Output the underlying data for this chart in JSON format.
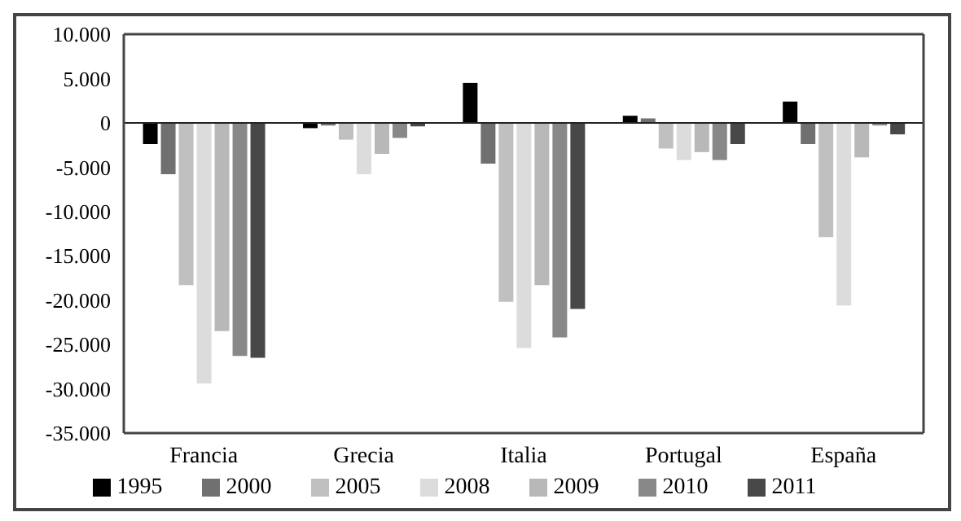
{
  "chart_data": {
    "type": "bar",
    "categories": [
      "Francia",
      "Grecia",
      "Italia",
      "Portugal",
      "España"
    ],
    "series": [
      {
        "name": "1995",
        "color": "#000000",
        "values": [
          -2400,
          -600,
          4500,
          800,
          2400
        ]
      },
      {
        "name": "2000",
        "color": "#707070",
        "values": [
          -5800,
          -300,
          -4600,
          500,
          -2400
        ]
      },
      {
        "name": "2005",
        "color": "#c0c0c0",
        "values": [
          -18300,
          -1900,
          -20200,
          -2900,
          -12900
        ]
      },
      {
        "name": "2008",
        "color": "#dcdcdc",
        "values": [
          -29400,
          -5800,
          -25400,
          -4200,
          -20600
        ]
      },
      {
        "name": "2009",
        "color": "#b8b8b8",
        "values": [
          -23500,
          -3500,
          -18300,
          -3300,
          -3900
        ]
      },
      {
        "name": "2010",
        "color": "#888888",
        "values": [
          -26300,
          -1700,
          -24200,
          -4200,
          -300
        ]
      },
      {
        "name": "2011",
        "color": "#484848",
        "values": [
          -26500,
          -400,
          -21000,
          -2400,
          -1300
        ]
      }
    ],
    "ylim": [
      -35000,
      10000
    ],
    "yticks": [
      {
        "value": -35000,
        "label": "-35.000"
      },
      {
        "value": -30000,
        "label": "-30.000"
      },
      {
        "value": -25000,
        "label": "-25.000"
      },
      {
        "value": -20000,
        "label": "-20.000"
      },
      {
        "value": -15000,
        "label": "-15.000"
      },
      {
        "value": -10000,
        "label": "-10.000"
      },
      {
        "value": -5000,
        "label": "-5.000"
      },
      0,
      {
        "value": 5000,
        "label": "5.000"
      },
      {
        "value": 10000,
        "label": "10.000"
      }
    ],
    "legend": "bottom"
  }
}
